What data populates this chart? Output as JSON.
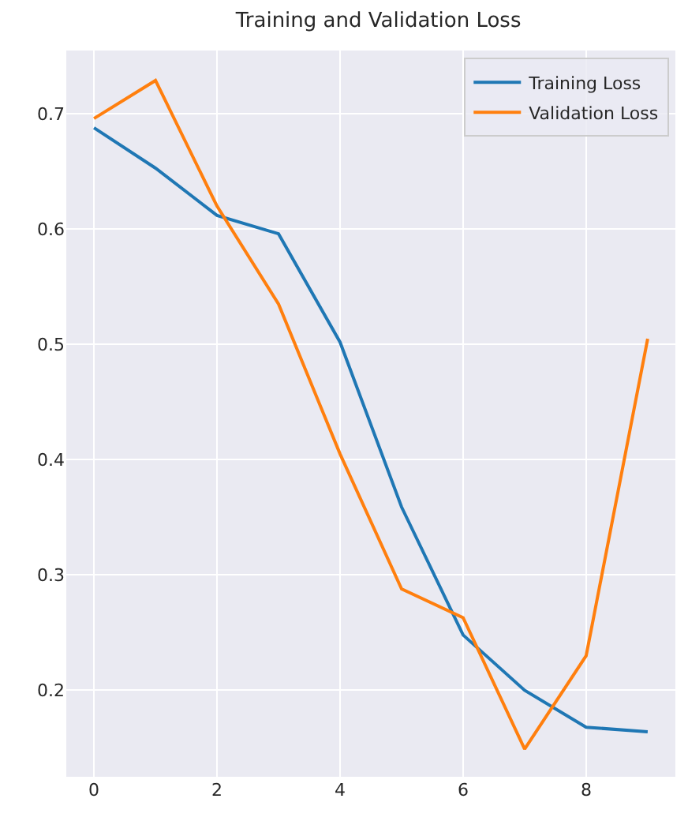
{
  "chart_data": {
    "type": "line",
    "title": "Training and Validation Loss",
    "x": [
      0,
      1,
      2,
      3,
      4,
      5,
      6,
      7,
      8,
      9
    ],
    "series": [
      {
        "name": "Training Loss",
        "color": "#1f77b4",
        "values": [
          0.688,
          0.653,
          0.612,
          0.596,
          0.502,
          0.359,
          0.248,
          0.2,
          0.168,
          0.164
        ]
      },
      {
        "name": "Validation Loss",
        "color": "#ff7f0e",
        "values": [
          0.696,
          0.729,
          0.62,
          0.535,
          0.405,
          0.288,
          0.263,
          0.149,
          0.23,
          0.505
        ]
      }
    ],
    "xlim": [
      -0.45,
      9.45
    ],
    "xticks": [
      0,
      2,
      4,
      6,
      8
    ],
    "ylim": [
      0.125,
      0.755
    ],
    "yticks": [
      0.2,
      0.3,
      0.4,
      0.5,
      0.6,
      0.7
    ],
    "grid": true,
    "legend": "top right",
    "marker": "none",
    "line_style": "solid"
  }
}
